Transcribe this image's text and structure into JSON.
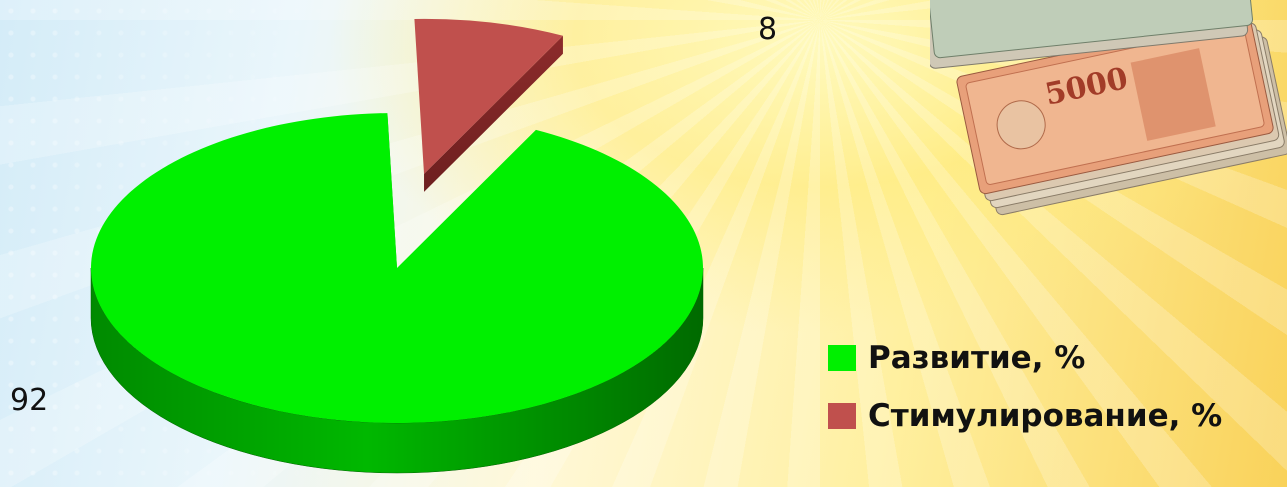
{
  "chart_data": {
    "type": "pie",
    "title": "",
    "categories": [
      "Развитие, %",
      "Стимулирование, %"
    ],
    "values": [
      92,
      8
    ],
    "data_labels": [
      "92",
      "8"
    ],
    "colors": [
      "#00f000",
      "#c0504d"
    ],
    "exploded": [
      false,
      true
    ],
    "style": "3d",
    "legend_position": "right"
  },
  "decoration": {
    "image": "banknotes-stack-5000-rubles",
    "banknote_denomination": "5000"
  }
}
